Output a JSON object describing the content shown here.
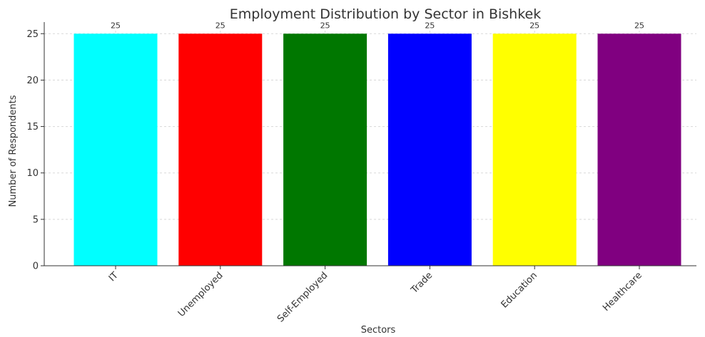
{
  "chart_data": {
    "type": "bar",
    "title": "Employment Distribution by Sector in Bishkek",
    "xlabel": "Sectors",
    "ylabel": "Number of Respondents",
    "categories": [
      "IT",
      "Unemployed",
      "Self-Employed",
      "Trade",
      "Education",
      "Healthcare"
    ],
    "values": [
      25,
      25,
      25,
      25,
      25,
      25
    ],
    "data_labels": [
      "25",
      "25",
      "25",
      "25",
      "25",
      "25"
    ],
    "colors": [
      "#00ffff",
      "#ff0000",
      "#007700",
      "#0000ff",
      "#ffff00",
      "#800080"
    ],
    "ylim": [
      0,
      26.25
    ],
    "yticks": [
      0,
      5,
      10,
      15,
      20,
      25
    ],
    "grid": true,
    "legend": "none"
  }
}
